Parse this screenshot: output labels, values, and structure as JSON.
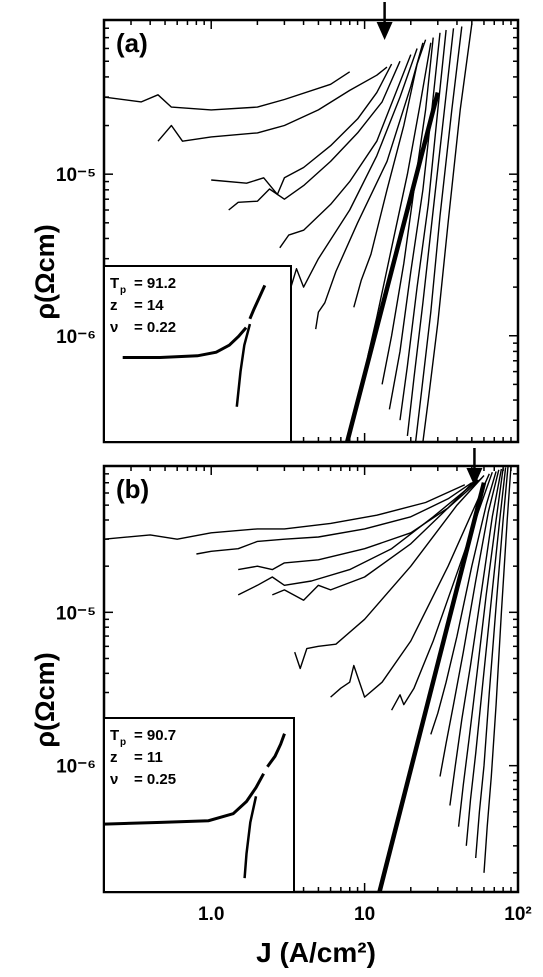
{
  "figure": {
    "xlabel": "J (A/cm²)",
    "ylabel": "ρ(Ωcm)"
  },
  "chart_data": [
    {
      "type": "line",
      "panel_label": "(a)",
      "xscale": "log",
      "yscale": "log",
      "xlim": [
        0.2,
        100
      ],
      "ylim": [
        2.2e-07,
        9e-05
      ],
      "y_tick_labels": [
        {
          "value": 1e-05,
          "label": "10⁻⁵"
        },
        {
          "value": 1e-06,
          "label": "10⁻⁶"
        }
      ],
      "arrow_x": 13.5,
      "thick_line": {
        "x": [
          7.7,
          30
        ],
        "y": [
          2.2e-07,
          3.2e-05
        ]
      },
      "series": [
        {
          "x": [
            0.2,
            0.35,
            0.45,
            0.55,
            1.0,
            2.0,
            3.0,
            6.0,
            8.0
          ],
          "y": [
            3e-05,
            2.8e-05,
            3.1e-05,
            2.6e-05,
            2.5e-05,
            2.6e-05,
            2.9e-05,
            3.6e-05,
            4.3e-05
          ]
        },
        {
          "x": [
            0.45,
            0.55,
            0.65,
            1.0,
            2.0,
            3.0,
            5.0,
            8.0,
            12.0,
            14.0
          ],
          "y": [
            1.6e-05,
            2e-05,
            1.6e-05,
            1.7e-05,
            1.8e-05,
            2e-05,
            2.5e-05,
            3.3e-05,
            4.1e-05,
            4.6e-05
          ]
        },
        {
          "x": [
            1.0,
            1.7,
            2.2,
            2.7,
            3.0,
            4.0,
            6.0,
            9.0,
            12.0,
            15.0
          ],
          "y": [
            9.2e-06,
            8.8e-06,
            9.5e-06,
            7.5e-06,
            9.5e-06,
            1.1e-05,
            1.5e-05,
            2.2e-05,
            3.2e-05,
            4.8e-05
          ]
        },
        {
          "x": [
            1.3,
            1.5,
            2.0,
            2.4,
            3.0,
            4.0,
            6.0,
            9.0,
            13.0,
            17.0
          ],
          "y": [
            6e-06,
            6.7e-06,
            6.8e-06,
            8.1e-06,
            7e-06,
            8.5e-06,
            1.2e-05,
            1.8e-05,
            2.8e-05,
            5e-05
          ]
        },
        {
          "x": [
            2.8,
            3.2,
            4.0,
            6.0,
            8.0,
            12.0,
            16.0,
            20.0
          ],
          "y": [
            3.5e-06,
            4.2e-06,
            4.5e-06,
            6.5e-06,
            9e-06,
            1.6e-05,
            3.2e-05,
            5.5e-05
          ]
        },
        {
          "x": [
            3.2,
            3.6,
            4.0,
            5.0,
            8.0,
            12.0,
            17.0,
            22.0
          ],
          "y": [
            1.8e-06,
            2.6e-06,
            2e-06,
            3e-06,
            6e-06,
            1.3e-05,
            3e-05,
            6e-05
          ]
        },
        {
          "x": [
            4.8,
            5.0,
            5.5,
            6.5,
            9.0,
            14.0,
            20.0,
            24.0
          ],
          "y": [
            1.1e-06,
            1.4e-06,
            1.6e-06,
            2.5e-06,
            5e-06,
            1.2e-05,
            3.5e-05,
            6.5e-05
          ]
        },
        {
          "x": [
            8.5,
            9.5,
            11.0,
            14.0,
            18.0,
            22.0,
            25.0
          ],
          "y": [
            1.5e-06,
            2.2e-06,
            3.2e-06,
            8e-06,
            2e-05,
            4.8e-05,
            6.8e-05
          ]
        },
        {
          "x": [
            10.5,
            12.0,
            15.0,
            19.0,
            23.0,
            27.0
          ],
          "y": [
            7.5e-07,
            1.3e-06,
            3.5e-06,
            1e-05,
            2.7e-05,
            6.5e-05
          ]
        },
        {
          "x": [
            13.0,
            15.0,
            18.0,
            21.0,
            25.0,
            28.0
          ],
          "y": [
            5e-07,
            1e-06,
            2.8e-06,
            8e-06,
            2.5e-05,
            7e-05
          ]
        },
        {
          "x": [
            14.5,
            17.0,
            20.0,
            24.0,
            28.0,
            31.0
          ],
          "y": [
            3.5e-07,
            8e-07,
            2.5e-06,
            8e-06,
            3e-05,
            7.5e-05
          ]
        },
        {
          "x": [
            17.0,
            19.0,
            22.0,
            26.0,
            30.0,
            34.0
          ],
          "y": [
            3e-07,
            6.5e-07,
            2e-06,
            6.5e-06,
            2.5e-05,
            7.8e-05
          ]
        },
        {
          "x": [
            19.0,
            21.0,
            24.0,
            28.0,
            33.0,
            38.0
          ],
          "y": [
            2.4e-07,
            5.5e-07,
            1.6e-06,
            6e-06,
            2.4e-05,
            8e-05
          ]
        },
        {
          "x": [
            21.5,
            23.5,
            27.0,
            31.0,
            37.0,
            43.0
          ],
          "y": [
            2.2e-07,
            4.5e-07,
            1.4e-06,
            5.5e-06,
            2.5e-05,
            8.2e-05
          ]
        },
        {
          "x": [
            24.0,
            26.0,
            30.0,
            35.0,
            42.0,
            50.0
          ],
          "y": [
            2.2e-07,
            4e-07,
            1.2e-06,
            5e-06,
            2.5e-05,
            8.5e-05
          ]
        }
      ],
      "inset": {
        "lines": [
          {
            "label": "T",
            "sub": "p",
            "value": "= 91.2"
          },
          {
            "label": "z",
            "sub": "",
            "value": "= 14"
          },
          {
            "label": "ν",
            "sub": "",
            "value": "= 0.22"
          }
        ]
      }
    },
    {
      "type": "line",
      "panel_label": "(b)",
      "xscale": "log",
      "yscale": "log",
      "xlim": [
        0.2,
        100
      ],
      "ylim": [
        1.5e-07,
        9e-05
      ],
      "y_tick_labels": [
        {
          "value": 1e-05,
          "label": "10⁻⁵"
        },
        {
          "value": 1e-06,
          "label": "10⁻⁶"
        }
      ],
      "x_tick_labels": [
        {
          "value": 1.0,
          "label": "1.0"
        },
        {
          "value": 10,
          "label": "10"
        },
        {
          "value": 100,
          "label": "10²"
        }
      ],
      "arrow_x": 52,
      "thick_line": {
        "x": [
          12.5,
          60
        ],
        "y": [
          1.5e-07,
          7e-05
        ]
      },
      "series": [
        {
          "x": [
            0.2,
            0.4,
            0.6,
            1.0,
            2.0,
            3.0,
            6.0,
            12.0,
            25.0,
            45.0
          ],
          "y": [
            3e-05,
            3.2e-05,
            3e-05,
            3.3e-05,
            3.5e-05,
            3.5e-05,
            3.8e-05,
            4.3e-05,
            5.2e-05,
            6.8e-05
          ]
        },
        {
          "x": [
            0.8,
            1.0,
            1.5,
            2.0,
            3.0,
            5.0,
            10.0,
            20.0,
            35.0,
            50.0
          ],
          "y": [
            2.4e-05,
            2.5e-05,
            2.6e-05,
            2.9e-05,
            3e-05,
            3.1e-05,
            3.5e-05,
            4.2e-05,
            5.5e-05,
            7e-05
          ]
        },
        {
          "x": [
            1.5,
            2.0,
            2.5,
            3.0,
            5.0,
            10.0,
            20.0,
            35.0,
            52.0
          ],
          "y": [
            1.9e-05,
            2e-05,
            1.9e-05,
            2.1e-05,
            2.2e-05,
            2.6e-05,
            3.3e-05,
            4.8e-05,
            7.2e-05
          ]
        },
        {
          "x": [
            1.5,
            2.0,
            2.5,
            3.0,
            4.5,
            8.0,
            15.0,
            28.0,
            45.0,
            55.0
          ],
          "y": [
            1.3e-05,
            1.5e-05,
            1.7e-05,
            1.5e-05,
            1.6e-05,
            1.9e-05,
            2.6e-05,
            4.2e-05,
            6.2e-05,
            7.3e-05
          ]
        },
        {
          "x": [
            2.5,
            3.0,
            4.0,
            5.0,
            6.0,
            10.0,
            20.0,
            35.0,
            58.0
          ],
          "y": [
            1.3e-05,
            1.4e-05,
            1.2e-05,
            1.5e-05,
            1.4e-05,
            1.7e-05,
            2.8e-05,
            4.8e-05,
            7.5e-05
          ]
        },
        {
          "x": [
            3.5,
            3.8,
            4.2,
            5.0,
            6.5,
            10.0,
            20.0,
            40.0,
            60.0
          ],
          "y": [
            5.5e-06,
            4.3e-06,
            5.8e-06,
            6e-06,
            6.2e-06,
            9e-06,
            2e-05,
            5e-05,
            7.8e-05
          ]
        },
        {
          "x": [
            6.0,
            7.0,
            8.0,
            8.5,
            10.0,
            13.0,
            20.0,
            35.0,
            55.0,
            65.0
          ],
          "y": [
            2.8e-06,
            3.2e-06,
            3.5e-06,
            4.5e-06,
            2.8e-06,
            3.5e-06,
            6.5e-06,
            2e-05,
            5.5e-05,
            8e-05
          ]
        },
        {
          "x": [
            15.0,
            17.0,
            18.0,
            21.0,
            28.0,
            40.0,
            55.0,
            68.0
          ],
          "y": [
            2.3e-06,
            2.9e-06,
            2.5e-06,
            3.2e-06,
            6.5e-06,
            1.8e-05,
            4.5e-05,
            8.2e-05
          ]
        },
        {
          "x": [
            27.0,
            30.0,
            34.0,
            40.0,
            50.0,
            62.0,
            72.0
          ],
          "y": [
            1.6e-06,
            2.2e-06,
            3.5e-06,
            7e-06,
            2e-05,
            5e-05,
            8.3e-05
          ]
        },
        {
          "x": [
            31.0,
            34.0,
            38.0,
            44.0,
            53.0,
            64.0,
            75.0
          ],
          "y": [
            8.5e-07,
            1.4e-06,
            2.5e-06,
            5.5e-06,
            1.6e-05,
            4.5e-05,
            8.5e-05
          ]
        },
        {
          "x": [
            36.0,
            39.0,
            43.0,
            49.0,
            58.0,
            68.0,
            78.0
          ],
          "y": [
            5.5e-07,
            1e-06,
            2e-06,
            4.5e-06,
            1.4e-05,
            4.2e-05,
            8.6e-05
          ]
        },
        {
          "x": [
            41.0,
            44.0,
            48.0,
            54.0,
            62.0,
            72.0,
            80.0
          ],
          "y": [
            4e-07,
            7.5e-07,
            1.5e-06,
            4e-06,
            1.3e-05,
            4e-05,
            8.7e-05
          ]
        },
        {
          "x": [
            46.0,
            49.0,
            53.0,
            59.0,
            67.0,
            76.0,
            83.0
          ],
          "y": [
            3e-07,
            6e-07,
            1.2e-06,
            3.5e-06,
            1.2e-05,
            4e-05,
            8.8e-05
          ]
        },
        {
          "x": [
            53.0,
            56.0,
            60.0,
            65.0,
            72.0,
            80.0,
            86.0
          ],
          "y": [
            2.5e-07,
            5e-07,
            1e-06,
            3e-06,
            1.1e-05,
            4e-05,
            8.9e-05
          ]
        },
        {
          "x": [
            60.0,
            63.0,
            67.0,
            72.0,
            78.0,
            85.0,
            90.0
          ],
          "y": [
            2e-07,
            4e-07,
            8.5e-07,
            2.5e-06,
            1e-05,
            4e-05,
            9e-05
          ]
        }
      ],
      "inset": {
        "lines": [
          {
            "label": "T",
            "sub": "p",
            "value": "= 90.7"
          },
          {
            "label": "z",
            "sub": "",
            "value": "= 11"
          },
          {
            "label": "ν",
            "sub": "",
            "value": "= 0.25"
          }
        ]
      }
    }
  ]
}
